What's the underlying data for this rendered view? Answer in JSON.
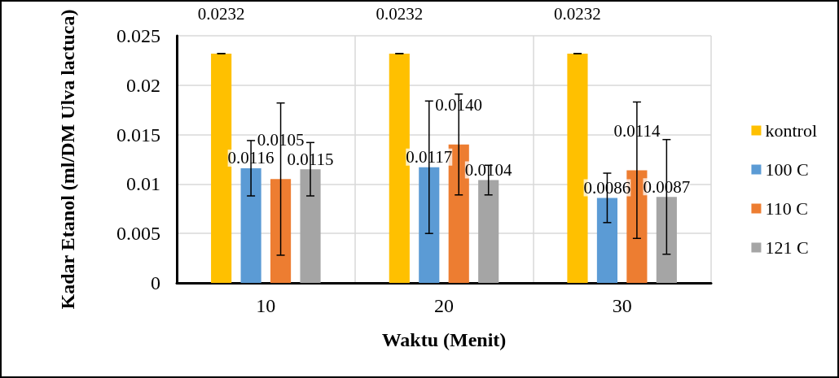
{
  "chart_data": {
    "type": "bar",
    "xlabel": "Waktu (Menit)",
    "ylabel": "Kadar Etanol (ml/DM Ulva lactuca)",
    "categories": [
      "10",
      "20",
      "30"
    ],
    "series": [
      {
        "name": "kontrol",
        "color": "#ffc000",
        "values": [
          0.0232,
          0.0232,
          0.0232
        ],
        "errors": [
          0,
          0,
          0
        ],
        "value_labels": [
          "0.0232",
          "0.0232",
          "0.0232"
        ]
      },
      {
        "name": "100 C",
        "color": "#5b9bd5",
        "values": [
          0.0116,
          0.0117,
          0.0086
        ],
        "errors": [
          0.0028,
          0.0067,
          0.0025
        ],
        "value_labels": [
          "0.0116",
          "0.0117",
          "0.0086"
        ]
      },
      {
        "name": "110 C",
        "color": "#ed7d31",
        "values": [
          0.0105,
          0.014,
          0.0114
        ],
        "errors": [
          0.0077,
          0.0051,
          0.0069
        ],
        "value_labels": [
          "0.0105",
          "0.0140",
          "0.0114"
        ]
      },
      {
        "name": "121 C",
        "color": "#a5a5a5",
        "values": [
          0.0115,
          0.0104,
          0.0087
        ],
        "errors": [
          0.0027,
          0.0015,
          0.0058
        ],
        "value_labels": [
          "0.0115",
          "0.0104",
          "0.0087"
        ]
      }
    ],
    "ylim": [
      0,
      0.025
    ],
    "yticks": [
      0,
      0.005,
      0.01,
      0.015,
      0.02,
      0.025
    ],
    "grid": true,
    "legend": "right"
  }
}
